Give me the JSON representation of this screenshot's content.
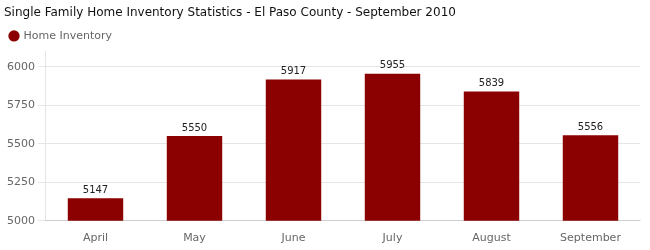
{
  "chart_data": {
    "type": "bar",
    "title": "Single Family Home Inventory Statistics - El Paso County - September 2010",
    "categories": [
      "April",
      "May",
      "June",
      "July",
      "August",
      "September"
    ],
    "series": [
      {
        "name": "Home Inventory",
        "color": "#8B0000",
        "values": [
          5147,
          5550,
          5917,
          5955,
          5839,
          5556
        ]
      }
    ],
    "ylim": [
      5000,
      6100
    ],
    "yticks": [
      5000,
      5250,
      5500,
      5750,
      6000
    ],
    "grid": true,
    "legend": "upper left",
    "data_labels": true
  }
}
